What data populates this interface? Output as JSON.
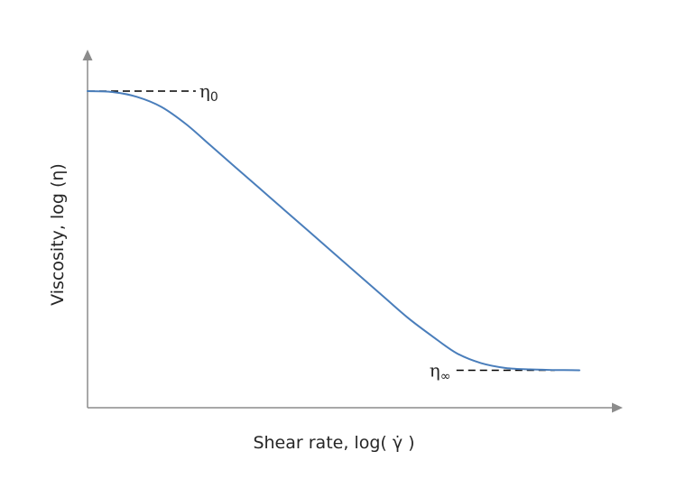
{
  "chart_data": {
    "type": "line",
    "title": "",
    "xlabel": "Shear rate, log( γ̇ )",
    "ylabel": "Viscosity, log (η)",
    "xlim": [
      0,
      1
    ],
    "ylim": [
      0,
      1
    ],
    "grid": false,
    "ticks": false,
    "series": [
      {
        "color": "#4a7ebb",
        "x": [
          0.0,
          0.05,
          0.1,
          0.15,
          0.2,
          0.25,
          0.3,
          0.35,
          0.4,
          0.45,
          0.5,
          0.55,
          0.6,
          0.65,
          0.7,
          0.75,
          0.8,
          0.85,
          0.9,
          0.95,
          1.0
        ],
        "y": [
          1.0,
          0.997,
          0.98,
          0.945,
          0.885,
          0.81,
          0.735,
          0.66,
          0.585,
          0.51,
          0.435,
          0.36,
          0.285,
          0.21,
          0.145,
          0.085,
          0.05,
          0.033,
          0.028,
          0.026,
          0.025
        ]
      }
    ],
    "reference_lines": [
      {
        "label": "η",
        "subscript": "0",
        "y": 1.0,
        "x_range": [
          0.0,
          0.22
        ],
        "label_side": "right"
      },
      {
        "label": "η",
        "subscript": "∞",
        "y": 0.025,
        "x_range": [
          0.75,
          0.95
        ],
        "label_side": "left"
      }
    ]
  }
}
